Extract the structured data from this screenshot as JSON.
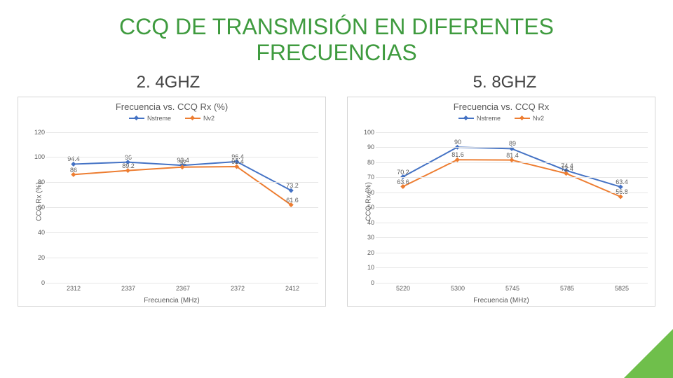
{
  "slide": {
    "title_line1": "CCQ DE TRANSMISIÓN EN  DIFERENTES",
    "title_line2": "FRECUENCIAS",
    "title_color": "#3f9b3f",
    "background_color": "#ffffff",
    "corner_color": "#6fbf4b"
  },
  "bands": {
    "left": "2. 4GHZ",
    "right": "5. 8GHZ"
  },
  "series_colors": {
    "nstreme": "#4472c4",
    "nv2": "#ed7d31"
  },
  "legend_labels": {
    "nstreme": "Nstreme",
    "nv2": "Nv2"
  },
  "chart_left": {
    "title": "Frecuencia vs. CCQ Rx (%)",
    "ylabel": "CCQ Rx (%)",
    "xlabel": "Frecuencia (MHz)",
    "ylim": [
      0,
      120
    ],
    "ytick_step": 20,
    "categories": [
      "2312",
      "2337",
      "2367",
      "2372",
      "2412"
    ],
    "nstreme": [
      94.4,
      96,
      93.4,
      96.4,
      73.2
    ],
    "nv2": [
      86,
      89.2,
      92,
      92.4,
      61.6
    ],
    "grid_color": "#e6e6e6",
    "text_color": "#5a5a5a"
  },
  "chart_right": {
    "title": "Frecuencia vs. CCQ Rx",
    "ylabel": "CCQ Rx (%)",
    "xlabel": "Frecuencia (MHz)",
    "ylim": [
      0,
      100
    ],
    "ytick_step": 10,
    "categories": [
      "5220",
      "5300",
      "5745",
      "5785",
      "5825"
    ],
    "nstreme": [
      70.2,
      90,
      89,
      74.4,
      63.4
    ],
    "nv2": [
      63.6,
      81.6,
      81.4,
      72.4,
      56.8
    ],
    "grid_color": "#e6e6e6",
    "text_color": "#5a5a5a"
  }
}
